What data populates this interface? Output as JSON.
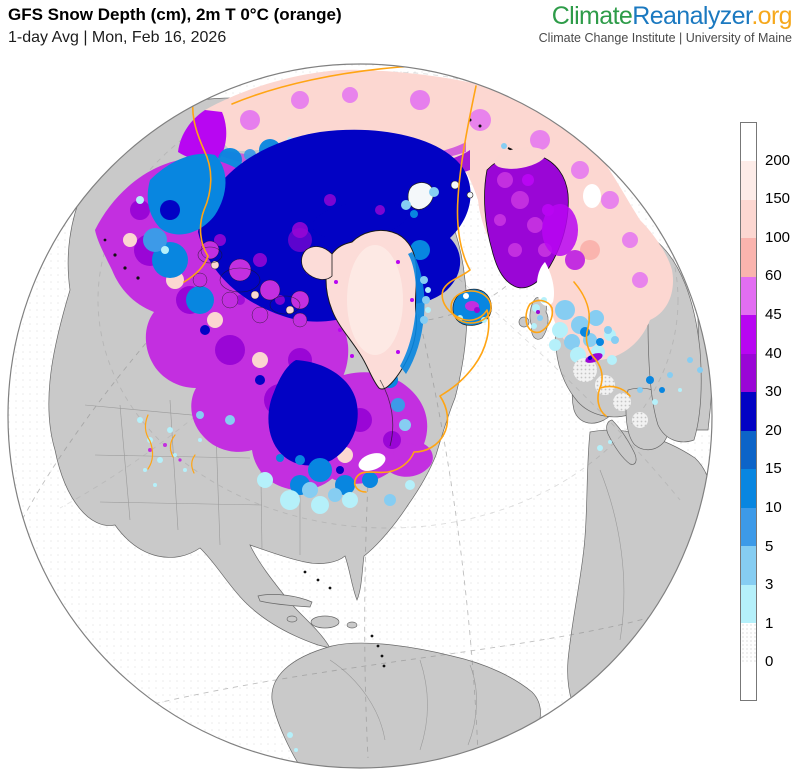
{
  "header": {
    "title": "GFS Snow Depth (cm), 2m T 0°C (orange)",
    "subtitle": "1-day Avg | Mon, Feb 16, 2026"
  },
  "logo": {
    "part1": "Climate",
    "part2": "Reanalyzer",
    "part3": ".org",
    "tagline": "Climate Change Institute | University of Maine",
    "colors": {
      "part1": "#2e9c49",
      "part2": "#1b79c0",
      "part3": "#f6a81c"
    }
  },
  "legend": {
    "labels": [
      "200",
      "150",
      "100",
      "60",
      "45",
      "40",
      "30",
      "20",
      "15",
      "10",
      "5",
      "3",
      "1",
      "0"
    ],
    "segment_colors_top_to_bottom": [
      "#ffffff",
      "#fdece8",
      "#fcd7d1",
      "#fab4ae",
      "#e26ef2",
      "#b806f2",
      "#9a06d6",
      "#0202c4",
      "#0c64c8",
      "#0886e0",
      "#3d9ae8",
      "#86cdf2",
      "#b5f0fa",
      "stipple",
      "#ffffff"
    ]
  },
  "map": {
    "variable": "snow depth (cm)",
    "contour_label": "2m T 0°C",
    "contour_color": "#ffa514",
    "ocean_color": "#ffffff",
    "no_snow_land_color": "#c9c9c9",
    "projection_center": "North Atlantic / Arctic orthographic globe"
  }
}
